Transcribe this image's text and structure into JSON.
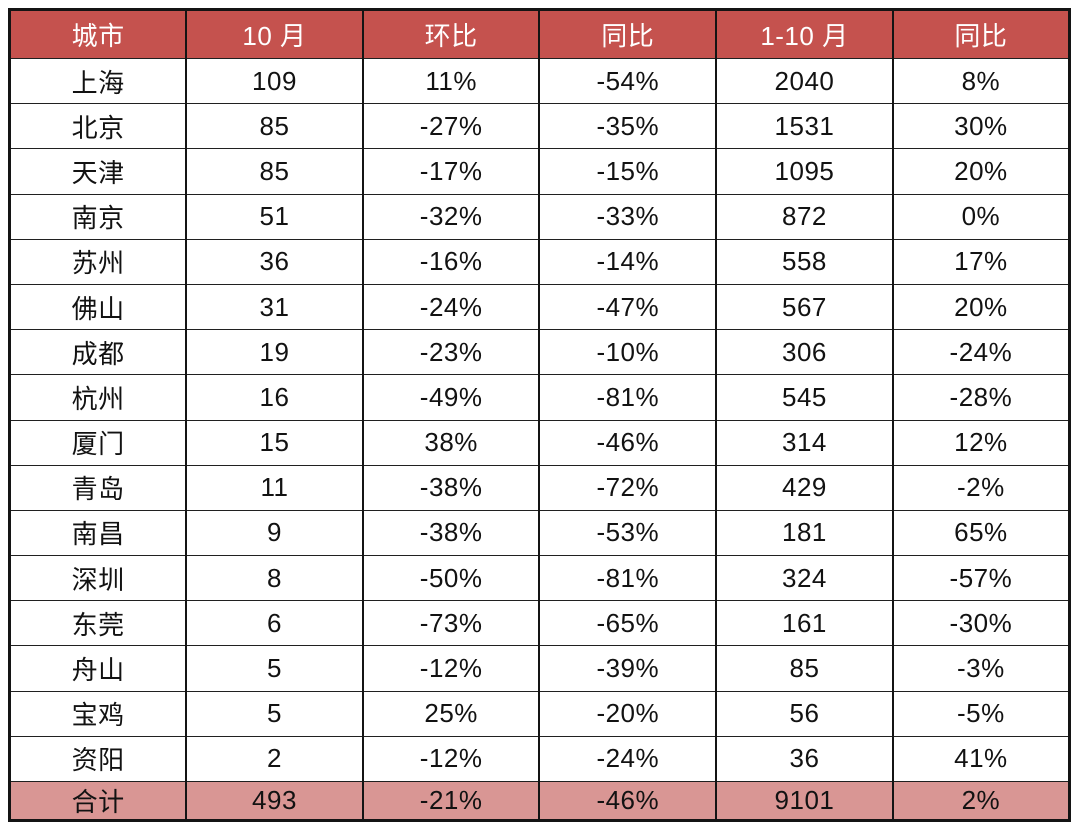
{
  "colors": {
    "header_bg": "#C5524E",
    "header_text": "#FFFFFF",
    "total_bg": "#D99694",
    "body_text": "#121212",
    "border": "#141414"
  },
  "chart_data": {
    "type": "table",
    "title": "",
    "columns": [
      "城市",
      "10 月",
      "环比",
      "同比",
      "1-10 月",
      "同比"
    ],
    "rows": [
      [
        "上海",
        "109",
        "11%",
        "-54%",
        "2040",
        "8%"
      ],
      [
        "北京",
        "85",
        "-27%",
        "-35%",
        "1531",
        "30%"
      ],
      [
        "天津",
        "85",
        "-17%",
        "-15%",
        "1095",
        "20%"
      ],
      [
        "南京",
        "51",
        "-32%",
        "-33%",
        "872",
        "0%"
      ],
      [
        "苏州",
        "36",
        "-16%",
        "-14%",
        "558",
        "17%"
      ],
      [
        "佛山",
        "31",
        "-24%",
        "-47%",
        "567",
        "20%"
      ],
      [
        "成都",
        "19",
        "-23%",
        "-10%",
        "306",
        "-24%"
      ],
      [
        "杭州",
        "16",
        "-49%",
        "-81%",
        "545",
        "-28%"
      ],
      [
        "厦门",
        "15",
        "38%",
        "-46%",
        "314",
        "12%"
      ],
      [
        "青岛",
        "11",
        "-38%",
        "-72%",
        "429",
        "-2%"
      ],
      [
        "南昌",
        "9",
        "-38%",
        "-53%",
        "181",
        "65%"
      ],
      [
        "深圳",
        "8",
        "-50%",
        "-81%",
        "324",
        "-57%"
      ],
      [
        "东莞",
        "6",
        "-73%",
        "-65%",
        "161",
        "-30%"
      ],
      [
        "舟山",
        "5",
        "-12%",
        "-39%",
        "85",
        "-3%"
      ],
      [
        "宝鸡",
        "5",
        "25%",
        "-20%",
        "56",
        "-5%"
      ],
      [
        "资阳",
        "2",
        "-12%",
        "-24%",
        "36",
        "41%"
      ]
    ],
    "total_row": [
      "合计",
      "493",
      "-21%",
      "-46%",
      "9101",
      "2%"
    ]
  }
}
